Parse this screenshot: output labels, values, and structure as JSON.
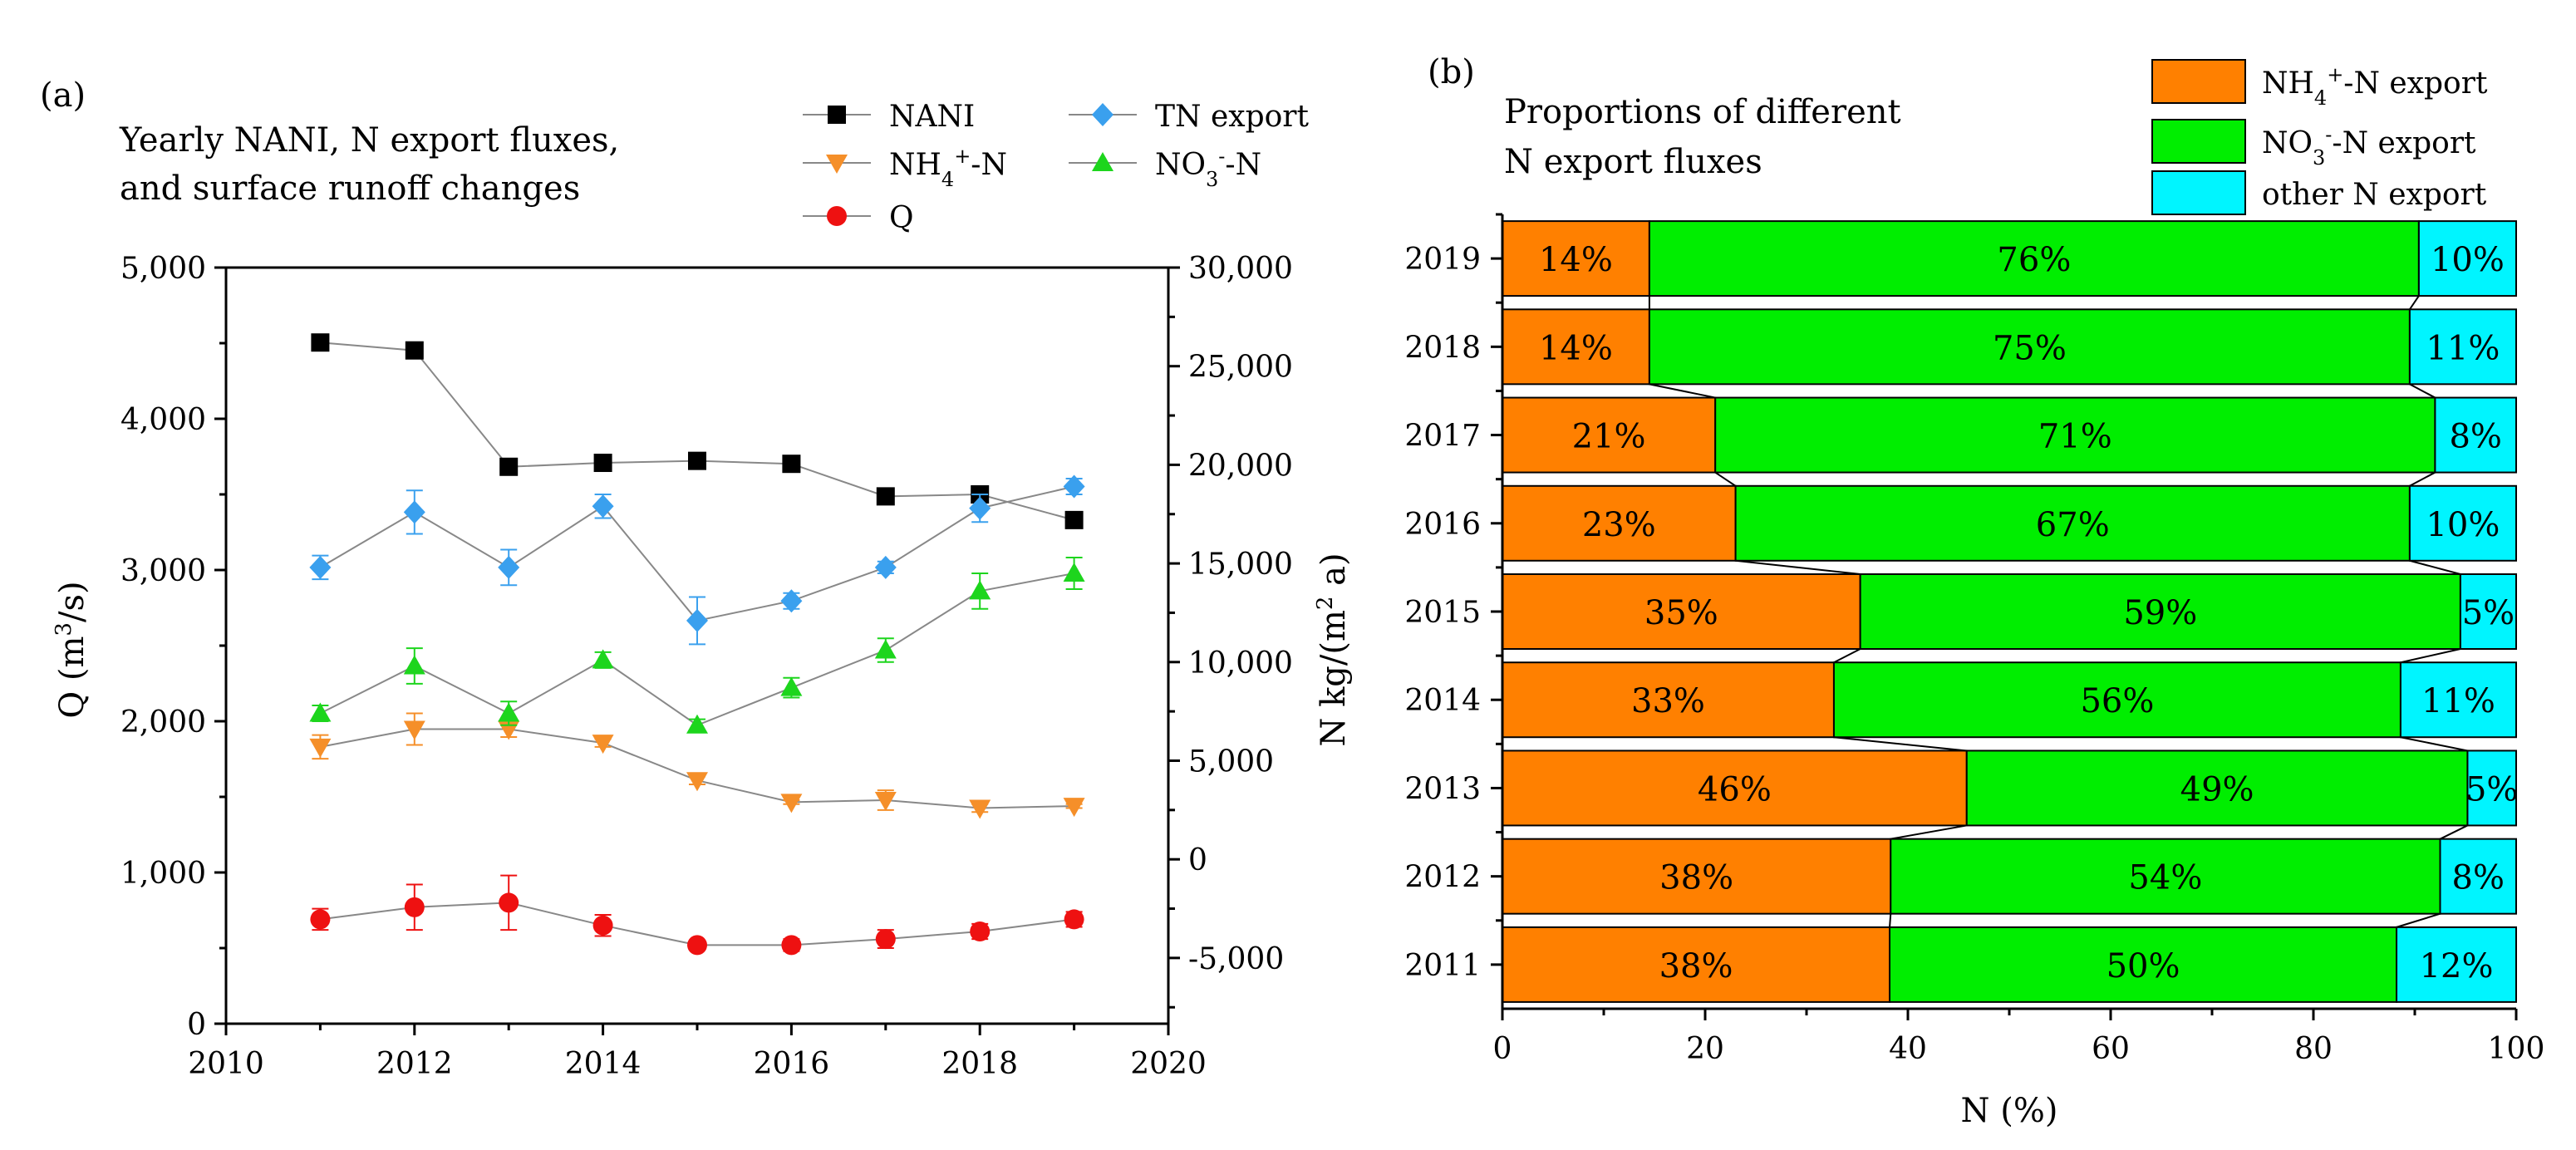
{
  "chart_data": [
    {
      "panel": "(a)",
      "type": "line",
      "title_lines": [
        "Yearly NANI, N export fluxes,",
        "and surface runoff changes"
      ],
      "x": [
        2011,
        2012,
        2013,
        2014,
        2015,
        2016,
        2017,
        2018,
        2019
      ],
      "xlim": [
        2010,
        2020
      ],
      "x_ticks": [
        "2010",
        "2012",
        "2014",
        "2016",
        "2018",
        "2020"
      ],
      "ylabel_left": "Q (m3/s)",
      "ylabel_left_parts": [
        "Q (m",
        "3",
        "/s)"
      ],
      "ylim_left": [
        0,
        5000
      ],
      "y_ticks_left": [
        "0",
        "1,000",
        "2,000",
        "3,000",
        "4,000",
        "5,000"
      ],
      "ylabel_right": "N kg/(m2 a)",
      "ylabel_right_parts": [
        "N kg/(m",
        "2",
        " a)"
      ],
      "ylim_right": [
        -8333,
        30000
      ],
      "y_ticks_right": [
        "-5,000",
        "0",
        "5,000",
        "10,000",
        "15,000",
        "20,000",
        "25,000",
        "30,000"
      ],
      "series": [
        {
          "name": "NANI",
          "legend_parts": [
            "NANI"
          ],
          "axis": "right",
          "color": "#000000",
          "marker": "square",
          "values": [
            26200,
            25800,
            19900,
            20100,
            20200,
            20050,
            18400,
            18500,
            17200
          ]
        },
        {
          "name": "TN export",
          "legend_parts": [
            "TN export"
          ],
          "axis": "right",
          "color": "#3aa0ee",
          "marker": "diamond",
          "values": [
            14800,
            17600,
            14800,
            17900,
            12100,
            13100,
            14800,
            17800,
            18900
          ],
          "errors": [
            600,
            1100,
            900,
            600,
            1200,
            400,
            300,
            700,
            400
          ]
        },
        {
          "name": "NH4+-N",
          "legend_parts": [
            "NH",
            "4",
            "+",
            "-N"
          ],
          "axis": "right",
          "color": "#f58f29",
          "marker": "triangle-down",
          "values": [
            5700,
            6600,
            6600,
            5900,
            4000,
            2900,
            3000,
            2600,
            2700
          ],
          "errors": [
            600,
            800,
            400,
            200,
            200,
            100,
            500,
            200,
            100
          ]
        },
        {
          "name": "NO3--N",
          "legend_parts": [
            "NO",
            "3",
            "-",
            "-N"
          ],
          "axis": "right",
          "color": "#1dd51d",
          "marker": "triangle-up",
          "values": [
            7400,
            9800,
            7400,
            10100,
            6800,
            8700,
            10600,
            13600,
            14500
          ],
          "errors": [
            400,
            900,
            600,
            400,
            300,
            500,
            600,
            900,
            800
          ]
        },
        {
          "name": "Q",
          "legend_parts": [
            "Q"
          ],
          "axis": "left",
          "color": "#ee1111",
          "marker": "circle",
          "values": [
            690,
            770,
            800,
            650,
            520,
            520,
            560,
            610,
            690
          ],
          "errors": [
            70,
            150,
            180,
            70,
            30,
            40,
            60,
            50,
            50
          ]
        }
      ]
    },
    {
      "panel": "(b)",
      "type": "bar",
      "orientation": "horizontal-stacked",
      "title_lines": [
        "Proportions of different",
        "N export fluxes"
      ],
      "categories": [
        "2019",
        "2018",
        "2017",
        "2016",
        "2015",
        "2014",
        "2013",
        "2012",
        "2011"
      ],
      "xlabel": "N (%)",
      "xlim": [
        0,
        100
      ],
      "x_ticks": [
        "0",
        "20",
        "40",
        "60",
        "80",
        "100"
      ],
      "series": [
        {
          "name": "NH4+-N export",
          "legend_parts": [
            "NH",
            "4",
            "+",
            "-N export"
          ],
          "color": "#ff8000",
          "values": [
            14.5,
            14.5,
            21,
            23,
            35.3,
            32.7,
            45.8,
            38.3,
            38.2
          ],
          "labels": [
            "14%",
            "14%",
            "21%",
            "23%",
            "35%",
            "33%",
            "46%",
            "38%",
            "38%"
          ]
        },
        {
          "name": "NO3--N export",
          "legend_parts": [
            "NO",
            "3",
            "-",
            "-N export"
          ],
          "color": "#00ee00",
          "values": [
            75.9,
            75,
            71,
            66.5,
            59.2,
            55.9,
            49.4,
            54.2,
            50
          ],
          "labels": [
            "76%",
            "75%",
            "71%",
            "67%",
            "59%",
            "56%",
            "49%",
            "54%",
            "50%"
          ]
        },
        {
          "name": "other N export",
          "legend_parts": [
            "other N export"
          ],
          "color": "#00f5ff",
          "values": [
            9.6,
            10.5,
            8,
            10.5,
            5.5,
            11.4,
            4.8,
            7.5,
            11.8
          ],
          "labels": [
            "10%",
            "11%",
            "8%",
            "10%",
            "5%",
            "11%",
            "5%",
            "8%",
            "12%"
          ]
        }
      ]
    }
  ]
}
